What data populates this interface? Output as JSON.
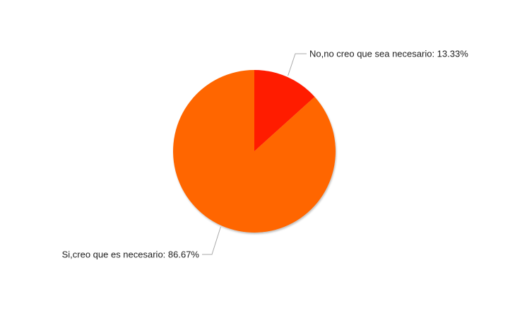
{
  "chart_data": {
    "type": "pie",
    "slices": [
      {
        "label": "No,no creo que sea necesario",
        "value": 13.33,
        "display": "No,no creo que sea necesario: 13.33%",
        "color": "#ff1a00"
      },
      {
        "label": "Si,creo que es necesario",
        "value": 86.67,
        "display": "Si,creo que es necesario: 86.67%",
        "color": "#ff6600"
      }
    ],
    "start_angle": "12 o'clock, clockwise",
    "legend": "none",
    "labels": "outside with leader lines"
  }
}
